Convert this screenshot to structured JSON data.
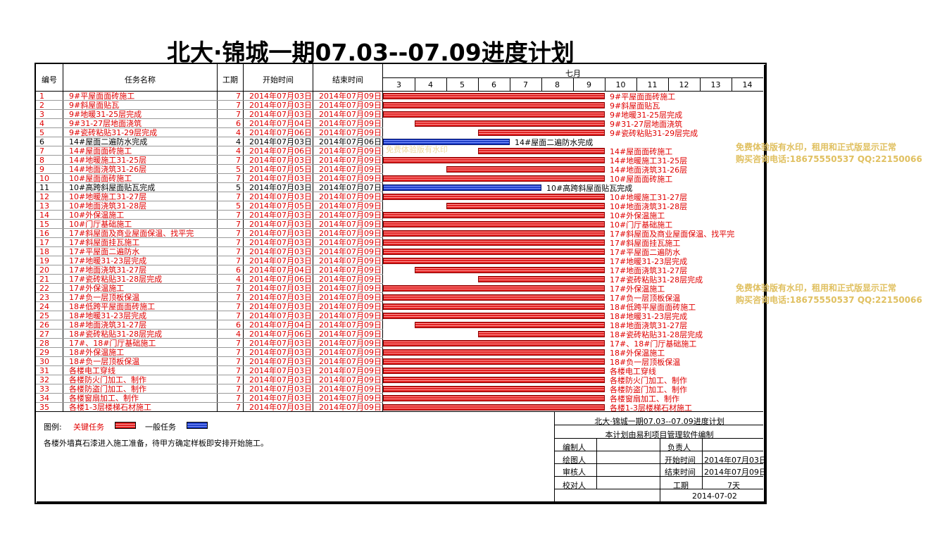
{
  "title": "北大·锦城一期07.03--07.09进度计划",
  "headers": {
    "id": "编号",
    "name": "任务名称",
    "duration": "工期",
    "start": "开始时间",
    "end": "结束时间",
    "month": "七月",
    "days": [
      "3",
      "4",
      "5",
      "6",
      "7",
      "8",
      "9",
      "10",
      "11",
      "12",
      "13",
      "14"
    ]
  },
  "colors": {
    "critical": "#e02020",
    "normal": "#1f3fc8",
    "critical_text": "#e00000"
  },
  "tasks": [
    {
      "id": "1",
      "name": "9#平屋面面砖施工",
      "dur": "7",
      "start": "2014年07月03日",
      "end": "2014年07月09日",
      "s": 3,
      "e": 9,
      "type": "critical"
    },
    {
      "id": "2",
      "name": "9#斜屋面贴瓦",
      "dur": "7",
      "start": "2014年07月03日",
      "end": "2014年07月09日",
      "s": 3,
      "e": 9,
      "type": "critical"
    },
    {
      "id": "3",
      "name": "9#地暖31-25层完成",
      "dur": "7",
      "start": "2014年07月03日",
      "end": "2014年07月09日",
      "s": 3,
      "e": 9,
      "type": "critical"
    },
    {
      "id": "4",
      "name": "9#31-27层地面浇筑",
      "dur": "6",
      "start": "2014年07月04日",
      "end": "2014年07月09日",
      "s": 4,
      "e": 9,
      "type": "critical"
    },
    {
      "id": "5",
      "name": "9#瓷砖粘贴31-29层完成",
      "dur": "4",
      "start": "2014年07月06日",
      "end": "2014年07月09日",
      "s": 6,
      "e": 9,
      "type": "critical"
    },
    {
      "id": "6",
      "name": "14#屋面二遍防水完成",
      "dur": "4",
      "start": "2014年07月03日",
      "end": "2014年07月06日",
      "s": 3,
      "e": 6,
      "type": "normal"
    },
    {
      "id": "7",
      "name": "14#屋面面砖施工",
      "dur": "4",
      "start": "2014年07月06日",
      "end": "2014年07月09日",
      "s": 6,
      "e": 9,
      "type": "critical"
    },
    {
      "id": "8",
      "name": "14#地暖施工31-25层",
      "dur": "7",
      "start": "2014年07月03日",
      "end": "2014年07月09日",
      "s": 3,
      "e": 9,
      "type": "critical"
    },
    {
      "id": "9",
      "name": "14#地面浇筑31-26层",
      "dur": "5",
      "start": "2014年07月05日",
      "end": "2014年07月09日",
      "s": 5,
      "e": 9,
      "type": "critical"
    },
    {
      "id": "10",
      "name": "10#屋面面砖施工",
      "dur": "7",
      "start": "2014年07月03日",
      "end": "2014年07月09日",
      "s": 3,
      "e": 9,
      "type": "critical"
    },
    {
      "id": "11",
      "name": "10#高跨斜屋面贴瓦完成",
      "dur": "5",
      "start": "2014年07月03日",
      "end": "2014年07月07日",
      "s": 3,
      "e": 7,
      "type": "normal"
    },
    {
      "id": "12",
      "name": "10#地暖施工31-27层",
      "dur": "7",
      "start": "2014年07月03日",
      "end": "2014年07月09日",
      "s": 3,
      "e": 9,
      "type": "critical"
    },
    {
      "id": "13",
      "name": "10#地面浇筑31-28层",
      "dur": "5",
      "start": "2014年07月05日",
      "end": "2014年07月09日",
      "s": 5,
      "e": 9,
      "type": "critical"
    },
    {
      "id": "14",
      "name": "10#外保温施工",
      "dur": "7",
      "start": "2014年07月03日",
      "end": "2014年07月09日",
      "s": 3,
      "e": 9,
      "type": "critical"
    },
    {
      "id": "15",
      "name": "10#门厅基础施工",
      "dur": "7",
      "start": "2014年07月03日",
      "end": "2014年07月09日",
      "s": 3,
      "e": 9,
      "type": "critical"
    },
    {
      "id": "16",
      "name": "17#斜屋面及商业屋面保温、找平完",
      "dur": "7",
      "start": "2014年07月03日",
      "end": "2014年07月09日",
      "s": 3,
      "e": 9,
      "type": "critical"
    },
    {
      "id": "17",
      "name": "17#斜屋面挂瓦施工",
      "dur": "7",
      "start": "2014年07月03日",
      "end": "2014年07月09日",
      "s": 3,
      "e": 9,
      "type": "critical"
    },
    {
      "id": "18",
      "name": "17#平屋面二遍防水",
      "dur": "7",
      "start": "2014年07月03日",
      "end": "2014年07月09日",
      "s": 3,
      "e": 9,
      "type": "critical"
    },
    {
      "id": "19",
      "name": "17#地暖31-23层完成",
      "dur": "7",
      "start": "2014年07月03日",
      "end": "2014年07月09日",
      "s": 3,
      "e": 9,
      "type": "critical"
    },
    {
      "id": "20",
      "name": "17#地面浇筑31-27层",
      "dur": "6",
      "start": "2014年07月04日",
      "end": "2014年07月09日",
      "s": 4,
      "e": 9,
      "type": "critical"
    },
    {
      "id": "21",
      "name": "17#瓷砖粘贴31-28层完成",
      "dur": "4",
      "start": "2014年07月06日",
      "end": "2014年07月09日",
      "s": 6,
      "e": 9,
      "type": "critical"
    },
    {
      "id": "22",
      "name": "17#外保温施工",
      "dur": "7",
      "start": "2014年07月03日",
      "end": "2014年07月09日",
      "s": 3,
      "e": 9,
      "type": "critical"
    },
    {
      "id": "23",
      "name": "17#负一层顶板保温",
      "dur": "7",
      "start": "2014年07月03日",
      "end": "2014年07月09日",
      "s": 3,
      "e": 9,
      "type": "critical"
    },
    {
      "id": "24",
      "name": "18#低跨平屋面面砖施工",
      "dur": "7",
      "start": "2014年07月03日",
      "end": "2014年07月09日",
      "s": 3,
      "e": 9,
      "type": "critical"
    },
    {
      "id": "25",
      "name": "18#地暖31-23层完成",
      "dur": "7",
      "start": "2014年07月03日",
      "end": "2014年07月09日",
      "s": 3,
      "e": 9,
      "type": "critical"
    },
    {
      "id": "26",
      "name": "18#地面浇筑31-27层",
      "dur": "6",
      "start": "2014年07月04日",
      "end": "2014年07月09日",
      "s": 4,
      "e": 9,
      "type": "critical"
    },
    {
      "id": "27",
      "name": "18#瓷砖粘贴31-28层完成",
      "dur": "4",
      "start": "2014年07月06日",
      "end": "2014年07月09日",
      "s": 6,
      "e": 9,
      "type": "critical"
    },
    {
      "id": "28",
      "name": "17#、18#门厅基础施工",
      "dur": "7",
      "start": "2014年07月03日",
      "end": "2014年07月09日",
      "s": 3,
      "e": 9,
      "type": "critical"
    },
    {
      "id": "29",
      "name": "18#外保温施工",
      "dur": "7",
      "start": "2014年07月03日",
      "end": "2014年07月09日",
      "s": 3,
      "e": 9,
      "type": "critical"
    },
    {
      "id": "30",
      "name": "18#负一层顶板保温",
      "dur": "7",
      "start": "2014年07月03日",
      "end": "2014年07月09日",
      "s": 3,
      "e": 9,
      "type": "critical"
    },
    {
      "id": "31",
      "name": "各楼电工穿线",
      "dur": "7",
      "start": "2014年07月03日",
      "end": "2014年07月09日",
      "s": 3,
      "e": 9,
      "type": "critical"
    },
    {
      "id": "32",
      "name": "各楼防火门加工、制作",
      "dur": "7",
      "start": "2014年07月03日",
      "end": "2014年07月09日",
      "s": 3,
      "e": 9,
      "type": "critical"
    },
    {
      "id": "33",
      "name": "各楼防盗门加工、制作",
      "dur": "7",
      "start": "2014年07月03日",
      "end": "2014年07月09日",
      "s": 3,
      "e": 9,
      "type": "critical"
    },
    {
      "id": "34",
      "name": "各楼窗扇加工、制作",
      "dur": "7",
      "start": "2014年07月03日",
      "end": "2014年07月09日",
      "s": 3,
      "e": 9,
      "type": "critical"
    },
    {
      "id": "35",
      "name": "各楼1-3层楼梯石材施工",
      "dur": "7",
      "start": "2014年07月03日",
      "end": "2014年07月09日",
      "s": 3,
      "e": 9,
      "type": "critical"
    }
  ],
  "legend": {
    "label": "图例:",
    "critical": "关键任务",
    "normal": "一般任务"
  },
  "note": "各楼外墙真石漆进入施工准备，待甲方确定样板即安排开始施工。",
  "titleblock": {
    "plan_title": "北大·锦城一期07.03--07.09进度计划",
    "software": "本计划由易利项目管理软件编制",
    "editor": "编制人",
    "manager": "负责人",
    "drawer": "绘图人",
    "start_label": "开始时间",
    "start_value": "2014年07月03日",
    "reviewer": "审核人",
    "end_label": "结束时间",
    "end_value": "2014年07月09日",
    "checker": "校对人",
    "dur_label": "工期",
    "dur_value": "7天",
    "date": "2014-07-02"
  },
  "watermark": {
    "line1": "免费体验版有水印，租用和正式版显示正常",
    "line2": "购买咨询电话:18675550537 QQ:22150066",
    "inline": "免费体验版有水印"
  }
}
